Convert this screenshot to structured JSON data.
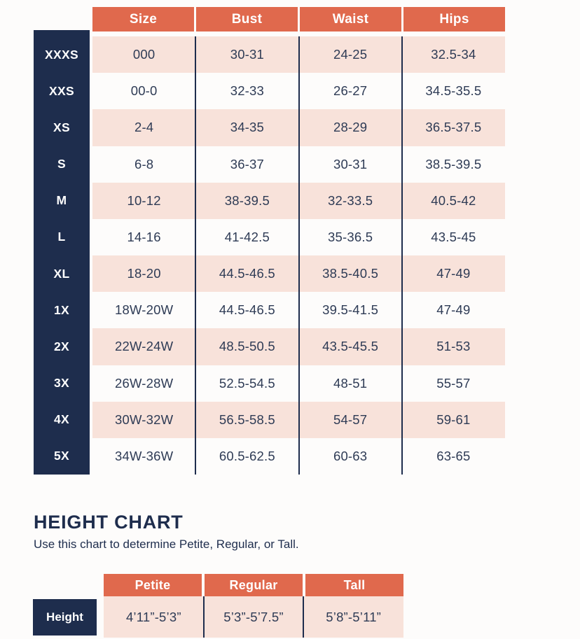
{
  "colors": {
    "coral": "#e0694d",
    "navy": "#1e2d4d",
    "pink": "#f8e2da",
    "text": "#2e3b55"
  },
  "size_chart": {
    "columns": [
      "Size",
      "Bust",
      "Waist",
      "Hips"
    ],
    "rows": [
      {
        "label": "XXXS",
        "size": "000",
        "bust": "30-31",
        "waist": "24-25",
        "hips": "32.5-34"
      },
      {
        "label": "XXS",
        "size": "00-0",
        "bust": "32-33",
        "waist": "26-27",
        "hips": "34.5-35.5"
      },
      {
        "label": "XS",
        "size": "2-4",
        "bust": "34-35",
        "waist": "28-29",
        "hips": "36.5-37.5"
      },
      {
        "label": "S",
        "size": "6-8",
        "bust": "36-37",
        "waist": "30-31",
        "hips": "38.5-39.5"
      },
      {
        "label": "M",
        "size": "10-12",
        "bust": "38-39.5",
        "waist": "32-33.5",
        "hips": "40.5-42"
      },
      {
        "label": "L",
        "size": "14-16",
        "bust": "41-42.5",
        "waist": "35-36.5",
        "hips": "43.5-45"
      },
      {
        "label": "XL",
        "size": "18-20",
        "bust": "44.5-46.5",
        "waist": "38.5-40.5",
        "hips": "47-49"
      },
      {
        "label": "1X",
        "size": "18W-20W",
        "bust": "44.5-46.5",
        "waist": "39.5-41.5",
        "hips": "47-49"
      },
      {
        "label": "2X",
        "size": "22W-24W",
        "bust": "48.5-50.5",
        "waist": "43.5-45.5",
        "hips": "51-53"
      },
      {
        "label": "3X",
        "size": "26W-28W",
        "bust": "52.5-54.5",
        "waist": "48-51",
        "hips": "55-57"
      },
      {
        "label": "4X",
        "size": "30W-32W",
        "bust": "56.5-58.5",
        "waist": "54-57",
        "hips": "59-61"
      },
      {
        "label": "5X",
        "size": "34W-36W",
        "bust": "60.5-62.5",
        "waist": "60-63",
        "hips": "63-65"
      }
    ]
  },
  "height_chart": {
    "title": "HEIGHT CHART",
    "subtitle": "Use this chart to determine Petite, Regular, or Tall.",
    "columns": [
      "Petite",
      "Regular",
      "Tall"
    ],
    "row_label": "Height",
    "values": [
      "4’11”-5’3”",
      "5’3”-5’7.5”",
      "5’8”-5’11”"
    ]
  }
}
